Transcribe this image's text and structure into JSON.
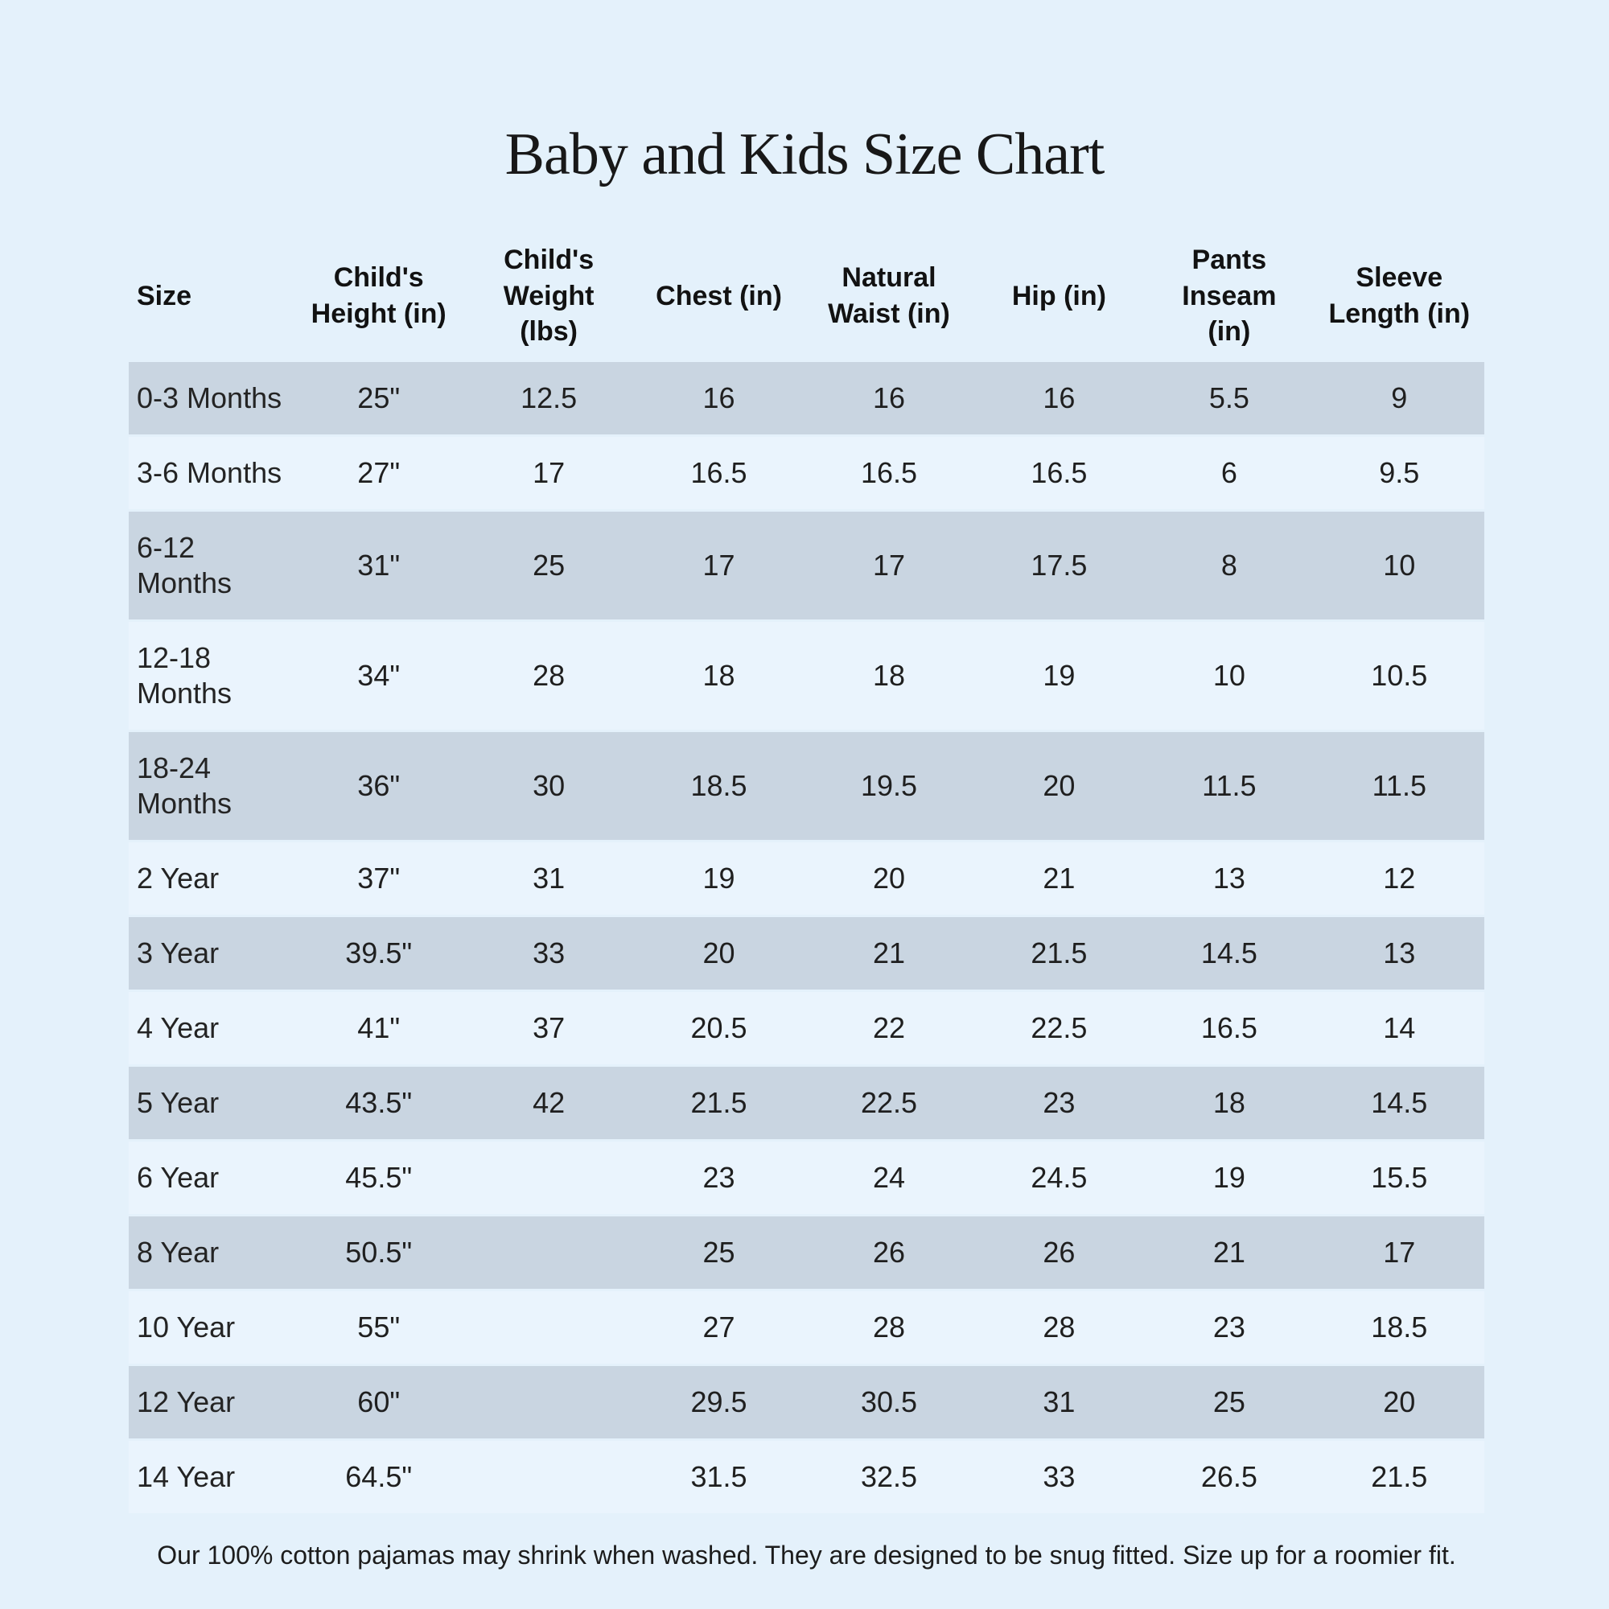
{
  "page": {
    "title": "Baby and Kids Size Chart",
    "footnote": "Our 100% cotton pajamas may shrink when washed. They are designed to be snug fitted. Size up for a roomier fit."
  },
  "colors": {
    "page_bg": "#e4f1fb",
    "row_shaded": "#c9d5e1",
    "row_light": "#eaf4fd",
    "text": "#1f1f1f"
  },
  "chart_data": {
    "type": "table",
    "title": "Baby and Kids Size Chart",
    "columns": [
      "Size",
      "Child's Height (in)",
      "Child's Weight (lbs)",
      "Chest (in)",
      "Natural Waist (in)",
      "Hip (in)",
      "Pants Inseam (in)",
      "Sleeve Length (in)"
    ],
    "rows": [
      [
        "0-3 Months",
        "25\"",
        "12.5",
        "16",
        "16",
        "16",
        "5.5",
        "9"
      ],
      [
        "3-6 Months",
        "27\"",
        "17",
        "16.5",
        "16.5",
        "16.5",
        "6",
        "9.5"
      ],
      [
        "6-12 Months",
        "31\"",
        "25",
        "17",
        "17",
        "17.5",
        "8",
        "10"
      ],
      [
        "12-18 Months",
        "34\"",
        "28",
        "18",
        "18",
        "19",
        "10",
        "10.5"
      ],
      [
        "18-24 Months",
        "36\"",
        "30",
        "18.5",
        "19.5",
        "20",
        "11.5",
        "11.5"
      ],
      [
        "2 Year",
        "37\"",
        "31",
        "19",
        "20",
        "21",
        "13",
        "12"
      ],
      [
        "3 Year",
        "39.5\"",
        "33",
        "20",
        "21",
        "21.5",
        "14.5",
        "13"
      ],
      [
        "4 Year",
        "41\"",
        "37",
        "20.5",
        "22",
        "22.5",
        "16.5",
        "14"
      ],
      [
        "5 Year",
        "43.5\"",
        "42",
        "21.5",
        "22.5",
        "23",
        "18",
        "14.5"
      ],
      [
        "6 Year",
        "45.5\"",
        "",
        "23",
        "24",
        "24.5",
        "19",
        "15.5"
      ],
      [
        "8 Year",
        "50.5\"",
        "",
        "25",
        "26",
        "26",
        "21",
        "17"
      ],
      [
        "10 Year",
        "55\"",
        "",
        "27",
        "28",
        "28",
        "23",
        "18.5"
      ],
      [
        "12 Year",
        "60\"",
        "",
        "29.5",
        "30.5",
        "31",
        "25",
        "20"
      ],
      [
        "14 Year",
        "64.5\"",
        "",
        "31.5",
        "32.5",
        "33",
        "26.5",
        "21.5"
      ]
    ],
    "layout": {
      "striping": "alternating rows, first data row shaded",
      "first_column_align": "left",
      "other_columns_align": "center"
    }
  }
}
